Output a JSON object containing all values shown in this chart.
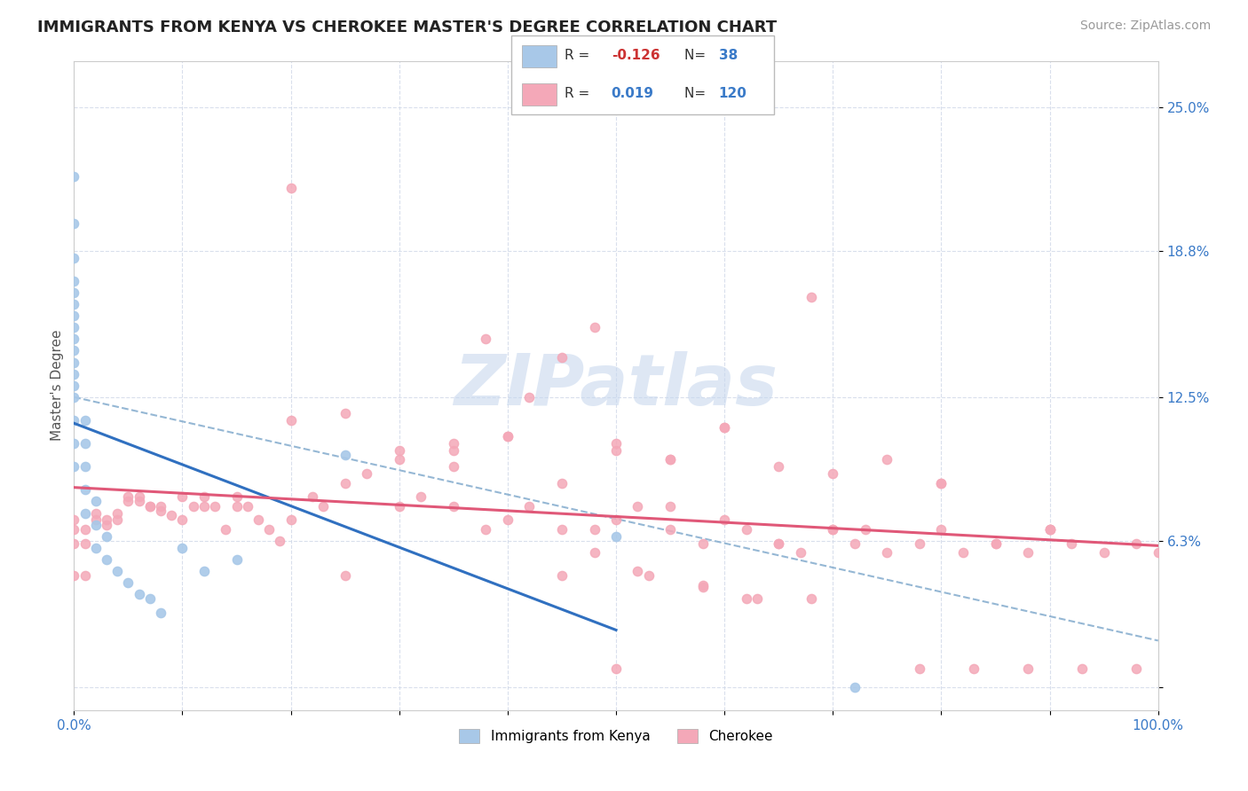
{
  "title": "IMMIGRANTS FROM KENYA VS CHEROKEE MASTER'S DEGREE CORRELATION CHART",
  "source_text": "Source: ZipAtlas.com",
  "ylabel": "Master's Degree",
  "xlim": [
    0.0,
    1.0
  ],
  "ylim": [
    -0.01,
    0.27
  ],
  "xticks": [
    0.0,
    0.1,
    0.2,
    0.3,
    0.4,
    0.5,
    0.6,
    0.7,
    0.8,
    0.9,
    1.0
  ],
  "xticklabels": [
    "0.0%",
    "",
    "",
    "",
    "",
    "",
    "",
    "",
    "",
    "",
    "100.0%"
  ],
  "ytick_positions": [
    0.0,
    0.063,
    0.125,
    0.188,
    0.25
  ],
  "ytick_labels": [
    "",
    "6.3%",
    "12.5%",
    "18.8%",
    "25.0%"
  ],
  "kenya_color": "#a8c8e8",
  "cherokee_color": "#f4a8b8",
  "kenya_line_color": "#3070c0",
  "cherokee_line_color": "#e05878",
  "watermark_color": "#c8d8ee",
  "kenya_scatter_x": [
    0.0,
    0.0,
    0.0,
    0.0,
    0.0,
    0.0,
    0.0,
    0.0,
    0.0,
    0.0,
    0.0,
    0.01,
    0.01,
    0.01,
    0.01,
    0.01,
    0.02,
    0.02,
    0.02,
    0.03,
    0.03,
    0.04,
    0.05,
    0.06,
    0.07,
    0.08,
    0.1,
    0.12,
    0.15,
    0.25,
    0.5,
    0.72,
    0.0,
    0.0,
    0.0,
    0.0,
    0.0,
    0.0
  ],
  "kenya_scatter_y": [
    0.22,
    0.2,
    0.175,
    0.165,
    0.155,
    0.145,
    0.135,
    0.125,
    0.115,
    0.105,
    0.095,
    0.115,
    0.105,
    0.095,
    0.085,
    0.075,
    0.08,
    0.07,
    0.06,
    0.065,
    0.055,
    0.05,
    0.045,
    0.04,
    0.038,
    0.032,
    0.06,
    0.05,
    0.055,
    0.1,
    0.065,
    0.0,
    0.185,
    0.17,
    0.16,
    0.15,
    0.14,
    0.13
  ],
  "cherokee_scatter_x": [
    0.02,
    0.03,
    0.04,
    0.05,
    0.06,
    0.07,
    0.08,
    0.09,
    0.1,
    0.11,
    0.12,
    0.13,
    0.14,
    0.15,
    0.16,
    0.17,
    0.18,
    0.19,
    0.2,
    0.22,
    0.23,
    0.25,
    0.27,
    0.3,
    0.32,
    0.35,
    0.38,
    0.4,
    0.42,
    0.45,
    0.48,
    0.5,
    0.52,
    0.55,
    0.58,
    0.6,
    0.62,
    0.65,
    0.67,
    0.7,
    0.72,
    0.75,
    0.78,
    0.8,
    0.82,
    0.85,
    0.88,
    0.9,
    0.92,
    0.95,
    0.98,
    1.0,
    0.0,
    0.0,
    0.0,
    0.0,
    0.01,
    0.01,
    0.01,
    0.02,
    0.03,
    0.04,
    0.05,
    0.06,
    0.07,
    0.08,
    0.1,
    0.12,
    0.15,
    0.2,
    0.25,
    0.3,
    0.35,
    0.4,
    0.45,
    0.5,
    0.55,
    0.6,
    0.65,
    0.7,
    0.75,
    0.8,
    0.85,
    0.9,
    0.4,
    0.3,
    0.2,
    0.35,
    0.25,
    0.5,
    0.55,
    0.45,
    0.6,
    0.7,
    0.8,
    0.9,
    0.35,
    0.45,
    0.55,
    0.65,
    0.48,
    0.52,
    0.58,
    0.62,
    0.68,
    0.38,
    0.42,
    0.48,
    0.53,
    0.58,
    0.63,
    0.68,
    0.73,
    0.78,
    0.83,
    0.88,
    0.93,
    0.98,
    0.5,
    0.6,
    0.7
  ],
  "cherokee_scatter_y": [
    0.075,
    0.07,
    0.075,
    0.08,
    0.08,
    0.078,
    0.076,
    0.074,
    0.082,
    0.078,
    0.082,
    0.078,
    0.068,
    0.082,
    0.078,
    0.072,
    0.068,
    0.063,
    0.072,
    0.082,
    0.078,
    0.088,
    0.092,
    0.078,
    0.082,
    0.078,
    0.068,
    0.072,
    0.078,
    0.068,
    0.068,
    0.072,
    0.078,
    0.068,
    0.062,
    0.072,
    0.068,
    0.062,
    0.058,
    0.068,
    0.062,
    0.058,
    0.062,
    0.068,
    0.058,
    0.062,
    0.058,
    0.068,
    0.062,
    0.058,
    0.062,
    0.058,
    0.072,
    0.068,
    0.062,
    0.048,
    0.068,
    0.062,
    0.048,
    0.072,
    0.072,
    0.072,
    0.082,
    0.082,
    0.078,
    0.078,
    0.072,
    0.078,
    0.078,
    0.115,
    0.118,
    0.098,
    0.102,
    0.108,
    0.142,
    0.102,
    0.098,
    0.112,
    0.095,
    0.092,
    0.098,
    0.088,
    0.062,
    0.068,
    0.108,
    0.102,
    0.215,
    0.105,
    0.048,
    0.105,
    0.098,
    0.048,
    0.112,
    0.068,
    0.088,
    0.068,
    0.095,
    0.088,
    0.078,
    0.062,
    0.058,
    0.05,
    0.044,
    0.038,
    0.038,
    0.15,
    0.125,
    0.155,
    0.048,
    0.043,
    0.038,
    0.168,
    0.068,
    0.008,
    0.008,
    0.008,
    0.008,
    0.008,
    0.008
  ]
}
